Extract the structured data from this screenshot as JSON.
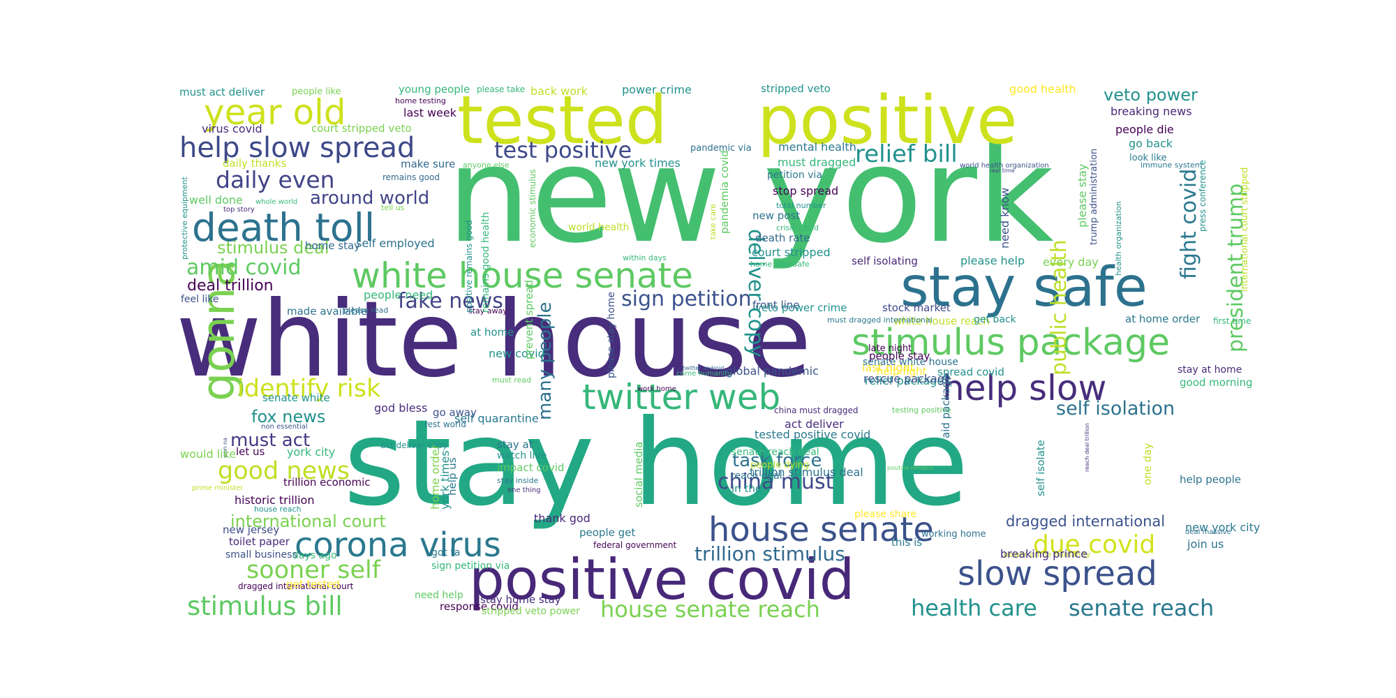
{
  "palette": {
    "purple": "#472d7b",
    "indigo": "#3b528b",
    "blue": "#2c728e",
    "teal": "#21918c",
    "sea": "#28ae80",
    "green": "#5ec962",
    "lime": "#addc30",
    "yellow": "#d6dc1f"
  },
  "words": [
    {
      "text": "new york",
      "color": "#44bf70"
    },
    {
      "text": "white house",
      "color": "#472d7b"
    },
    {
      "text": "stay home",
      "color": "#22a884"
    },
    {
      "text": "tested",
      "color": "#cde11d"
    },
    {
      "text": "positive",
      "color": "#cde11d"
    },
    {
      "text": "positive covid",
      "color": "#482878"
    },
    {
      "text": "stay safe",
      "color": "#2c728e"
    },
    {
      "text": "gonna",
      "color": "#7ad151"
    },
    {
      "text": "year old",
      "color": "#cde11d"
    },
    {
      "text": "death toll",
      "color": "#2c728e"
    },
    {
      "text": "help slow spread",
      "color": "#3e4989"
    },
    {
      "text": "white house senate",
      "color": "#5ec962"
    },
    {
      "text": "stimulus package",
      "color": "#5ec962"
    },
    {
      "text": "twitter web",
      "color": "#35b779"
    },
    {
      "text": "house senate",
      "color": "#3b528b"
    },
    {
      "text": "corona virus",
      "color": "#2a788e"
    },
    {
      "text": "slow spread",
      "color": "#3b528b"
    },
    {
      "text": "help slow",
      "color": "#472d7b"
    },
    {
      "text": "identify risk",
      "color": "#cde11d"
    },
    {
      "text": "stimulus bill",
      "color": "#5ec962"
    },
    {
      "text": "sooner self",
      "color": "#7ad151"
    },
    {
      "text": "good news",
      "color": "#bddf26"
    },
    {
      "text": "due covid",
      "color": "#d2e21b"
    },
    {
      "text": "test positive",
      "color": "#3e4989"
    },
    {
      "text": "relief bill",
      "color": "#21918c"
    },
    {
      "text": "daily even",
      "color": "#414487"
    },
    {
      "text": "fake news",
      "color": "#414487"
    },
    {
      "text": "sign petition",
      "color": "#3b528b"
    },
    {
      "text": "health care",
      "color": "#21918c"
    },
    {
      "text": "senate reach",
      "color": "#2a788e"
    },
    {
      "text": "house senate reach",
      "color": "#7ad151"
    },
    {
      "text": "trillion stimulus",
      "color": "#31688e"
    },
    {
      "text": "china must",
      "color": "#3e4989"
    },
    {
      "text": "task force",
      "color": "#2c728e"
    },
    {
      "text": "around world",
      "color": "#414487"
    },
    {
      "text": "amid covid",
      "color": "#5ec962"
    },
    {
      "text": "stimulus deal",
      "color": "#7ad151"
    },
    {
      "text": "deal trillion",
      "color": "#440154"
    },
    {
      "text": "fox news",
      "color": "#21918c"
    },
    {
      "text": "must act",
      "color": "#443983"
    },
    {
      "text": "international court",
      "color": "#7ad151"
    },
    {
      "text": "self isolation",
      "color": "#2c728e"
    },
    {
      "text": "veto power",
      "color": "#21918c"
    },
    {
      "text": "dragged international",
      "color": "#3b528b"
    },
    {
      "text": "deliver copy",
      "color": "#21918c"
    },
    {
      "text": "fight covid",
      "color": "#2a788e"
    },
    {
      "text": "president trump",
      "color": "#5ec962"
    },
    {
      "text": "public health",
      "color": "#bddf26"
    },
    {
      "text": "many people",
      "color": "#2c728e"
    },
    {
      "text": "must act deliver",
      "color": "#21918c"
    },
    {
      "text": "people like",
      "color": "#7ad151"
    },
    {
      "text": "young people",
      "color": "#35b779"
    },
    {
      "text": "please take",
      "color": "#35b779"
    },
    {
      "text": "back work",
      "color": "#bddf26"
    },
    {
      "text": "power crime",
      "color": "#21918c"
    },
    {
      "text": "stripped veto",
      "color": "#21918c"
    },
    {
      "text": "good health",
      "color": "#fde725"
    },
    {
      "text": "breaking news",
      "color": "#482878"
    },
    {
      "text": "home testing",
      "color": "#440154"
    },
    {
      "text": "last week",
      "color": "#440154"
    },
    {
      "text": "virus covid",
      "color": "#472d7b"
    },
    {
      "text": "court stripped veto",
      "color": "#7ad151"
    },
    {
      "text": "people die",
      "color": "#440154"
    },
    {
      "text": "go back",
      "color": "#21918c"
    },
    {
      "text": "look like",
      "color": "#2a788e"
    },
    {
      "text": "immune system",
      "color": "#2a788e"
    },
    {
      "text": "mental health",
      "color": "#2a788e"
    },
    {
      "text": "must dragged",
      "color": "#35b779"
    },
    {
      "text": "pandemic via",
      "color": "#2c728e"
    },
    {
      "text": "new york times",
      "color": "#21918c"
    },
    {
      "text": "daily thanks",
      "color": "#bddf26"
    },
    {
      "text": "make sure",
      "color": "#31688e"
    },
    {
      "text": "anyone else",
      "color": "#5ec962"
    },
    {
      "text": "remains good",
      "color": "#31688e"
    },
    {
      "text": "petition via",
      "color": "#2a788e"
    },
    {
      "text": "world health organization",
      "color": "#3b528b"
    },
    {
      "text": "real time",
      "color": "#414487"
    },
    {
      "text": "press conference",
      "color": "#21918c"
    },
    {
      "text": "stop spread",
      "color": "#440154"
    },
    {
      "text": "total number",
      "color": "#21918c"
    },
    {
      "text": "new post",
      "color": "#2c728e"
    },
    {
      "text": "crisis covid",
      "color": "#35b779"
    },
    {
      "text": "death rate",
      "color": "#31688e"
    },
    {
      "text": "court stripped",
      "color": "#21918c"
    },
    {
      "text": "home stay safe",
      "color": "#35b779"
    },
    {
      "text": "self isolating",
      "color": "#482878"
    },
    {
      "text": "please help",
      "color": "#21918c"
    },
    {
      "text": "every day",
      "color": "#7ad151"
    },
    {
      "text": "need know",
      "color": "#3b528b"
    },
    {
      "text": "please stay",
      "color": "#5ec962"
    },
    {
      "text": "trump administration",
      "color": "#3b528b"
    },
    {
      "text": "health organization",
      "color": "#21918c"
    },
    {
      "text": "international court stripped",
      "color": "#bddf26"
    },
    {
      "text": "protective equipment",
      "color": "#21918c"
    },
    {
      "text": "top story",
      "color": "#472d7b"
    },
    {
      "text": "well done",
      "color": "#5ec962"
    },
    {
      "text": "whole world",
      "color": "#35b779"
    },
    {
      "text": "tell us",
      "color": "#7ad151"
    },
    {
      "text": "world health",
      "color": "#bddf26"
    },
    {
      "text": "self employed",
      "color": "#2c728e"
    },
    {
      "text": "within days",
      "color": "#35b779"
    },
    {
      "text": "home stay",
      "color": "#31688e"
    },
    {
      "text": "people need",
      "color": "#35b779"
    },
    {
      "text": "feel like",
      "color": "#3b528b"
    },
    {
      "text": "made available",
      "color": "#2c728e"
    },
    {
      "text": "please read",
      "color": "#2c728e"
    },
    {
      "text": "stay away",
      "color": "#440154"
    },
    {
      "text": "at home",
      "color": "#21918c"
    },
    {
      "text": "new covid",
      "color": "#21918c"
    },
    {
      "text": "must read",
      "color": "#5ec962"
    },
    {
      "text": "god bless",
      "color": "#472d7b"
    },
    {
      "text": "go away",
      "color": "#3b528b"
    },
    {
      "text": "rest world",
      "color": "#2c728e"
    },
    {
      "text": "self quarantine",
      "color": "#2a788e"
    },
    {
      "text": "senate white",
      "color": "#21918c"
    },
    {
      "text": "non essential",
      "color": "#3b528b"
    },
    {
      "text": "wan na",
      "color": "#3b528b"
    },
    {
      "text": "would like",
      "color": "#7ad151"
    },
    {
      "text": "let us",
      "color": "#440154"
    },
    {
      "text": "york city",
      "color": "#35b779"
    },
    {
      "text": "trillion economic",
      "color": "#440154"
    },
    {
      "text": "prime minister",
      "color": "#bddf26"
    },
    {
      "text": "historic trillion",
      "color": "#440154"
    },
    {
      "text": "house reach",
      "color": "#21918c"
    },
    {
      "text": "act deliver copy",
      "color": "#21918c"
    },
    {
      "text": "stay at",
      "color": "#2c728e"
    },
    {
      "text": "watch live",
      "color": "#21918c"
    },
    {
      "text": "impact covid",
      "color": "#5ec962"
    },
    {
      "text": "stay inside",
      "color": "#2a788e"
    },
    {
      "text": "one thing",
      "color": "#472d7b"
    },
    {
      "text": "new jersey",
      "color": "#3e4989"
    },
    {
      "text": "toilet paper",
      "color": "#482878"
    },
    {
      "text": "small business",
      "color": "#3b528b"
    },
    {
      "text": "days ago",
      "color": "#35b779"
    },
    {
      "text": "dragged international court",
      "color": "#440154"
    },
    {
      "text": "get tested",
      "color": "#fde725"
    },
    {
      "text": "need help",
      "color": "#5ec962"
    },
    {
      "text": "response covid",
      "color": "#440154"
    },
    {
      "text": "stay home stay",
      "color": "#472d7b"
    },
    {
      "text": "stripped veto power",
      "color": "#7ad151"
    },
    {
      "text": "thank god",
      "color": "#482878"
    },
    {
      "text": "people get",
      "color": "#2a788e"
    },
    {
      "text": "federal government",
      "color": "#440154"
    },
    {
      "text": "got ta",
      "color": "#2a788e"
    },
    {
      "text": "sign petition via",
      "color": "#35b779"
    },
    {
      "text": "social media",
      "color": "#5ec962"
    },
    {
      "text": "york times",
      "color": "#21918c"
    },
    {
      "text": "home order",
      "color": "#7ad151"
    },
    {
      "text": "help us",
      "color": "#2a788e"
    },
    {
      "text": "prevent spread",
      "color": "#5ec962"
    },
    {
      "text": "positive remains good",
      "color": "#21918c"
    },
    {
      "text": "remains good health",
      "color": "#35b779"
    },
    {
      "text": "economic stimulus",
      "color": "#5ec962"
    },
    {
      "text": "please stay home",
      "color": "#3b528b"
    },
    {
      "text": "pandemia covid",
      "color": "#5ec962"
    },
    {
      "text": "take care",
      "color": "#bddf26"
    },
    {
      "text": "front line",
      "color": "#3b528b"
    },
    {
      "text": "veto power crime",
      "color": "#21918c"
    },
    {
      "text": "stock market",
      "color": "#3e4989"
    },
    {
      "text": "white house reach",
      "color": "#bddf26"
    },
    {
      "text": "must dragged international",
      "color": "#2a788e"
    },
    {
      "text": "help fight",
      "color": "#fde725"
    },
    {
      "text": "people stay",
      "color": "#440154"
    },
    {
      "text": "relief package",
      "color": "#21918c"
    },
    {
      "text": "testing positive",
      "color": "#5ec962"
    },
    {
      "text": "rescue package",
      "color": "#3b528b"
    },
    {
      "text": "last night",
      "color": "#fde725"
    },
    {
      "text": "late night",
      "color": "#440154"
    },
    {
      "text": "spread covid",
      "color": "#21918c"
    },
    {
      "text": "senate white house",
      "color": "#2c728e"
    },
    {
      "text": "crime humanity",
      "color": "#35b779"
    },
    {
      "text": "twitter android",
      "color": "#31688e"
    },
    {
      "text": "work home",
      "color": "#440154"
    },
    {
      "text": "global pandemic",
      "color": "#3b528b"
    },
    {
      "text": "china must dragged",
      "color": "#472d7b"
    },
    {
      "text": "act deliver",
      "color": "#472d7b"
    },
    {
      "text": "tested positive covid",
      "color": "#2a788e"
    },
    {
      "text": "senate reach deal",
      "color": "#35b779"
    },
    {
      "text": "people dying",
      "color": "#bddf26"
    },
    {
      "text": "trillion stimulus deal",
      "color": "#2c728e"
    },
    {
      "text": "reach deal",
      "color": "#2c728e"
    },
    {
      "text": "in the",
      "color": "#21918c"
    },
    {
      "text": "please share",
      "color": "#fde725"
    },
    {
      "text": "this is",
      "color": "#2a788e"
    },
    {
      "text": "working home",
      "color": "#2c728e"
    },
    {
      "text": "aid package",
      "color": "#2c728e"
    },
    {
      "text": "self isolate",
      "color": "#21918c"
    },
    {
      "text": "get back",
      "color": "#21918c"
    },
    {
      "text": "at home order",
      "color": "#2a788e"
    },
    {
      "text": "first time",
      "color": "#35b779"
    },
    {
      "text": "stay at home",
      "color": "#482878"
    },
    {
      "text": "good morning",
      "color": "#35b779"
    },
    {
      "text": "one day",
      "color": "#bddf26"
    },
    {
      "text": "positive remains",
      "color": "#5ec962"
    },
    {
      "text": "reach deal trillion",
      "color": "#472d7b"
    },
    {
      "text": "help people",
      "color": "#2c728e"
    },
    {
      "text": "new york city",
      "color": "#2a788e"
    },
    {
      "text": "deal massive",
      "color": "#2c728e"
    },
    {
      "text": "join us",
      "color": "#2c728e"
    },
    {
      "text": "power crime humanity",
      "color": "#bddf26"
    },
    {
      "text": "breaking prince",
      "color": "#472d7b"
    }
  ]
}
